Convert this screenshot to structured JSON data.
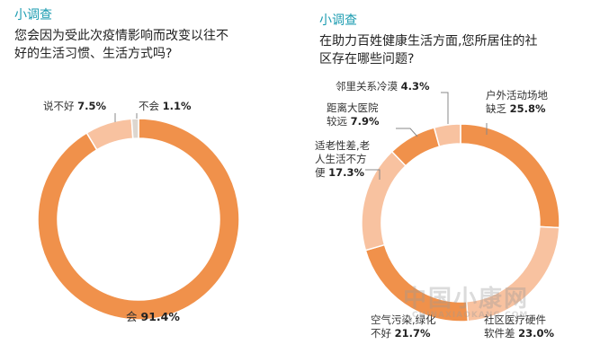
{
  "chart_data": [
    {
      "type": "pie",
      "kicker": "小调查",
      "question_lines": [
        "您会因为受此次疫情影响而改变以往不",
        "好的生活习惯、生活方式吗?"
      ],
      "slices": [
        {
          "label": "会",
          "value": 91.4,
          "value_text": "91.4%",
          "color": "#f0914b"
        },
        {
          "label": "说不好",
          "value": 7.5,
          "value_text": "7.5%",
          "color": "#f8c2a0"
        },
        {
          "label": "不会",
          "value": 1.1,
          "value_text": "1.1%",
          "color": "#ddd6cf"
        }
      ]
    },
    {
      "type": "pie",
      "kicker": "小调查",
      "question_lines": [
        "在助力百姓健康生活方面,您所居住的社",
        "区存在哪些问题?"
      ],
      "slices": [
        {
          "label_lines": [
            "户外活动场地",
            "缺乏"
          ],
          "value": 25.8,
          "value_text": "25.8%",
          "color": "#f0914b"
        },
        {
          "label_lines": [
            "社区医疗硬件",
            "软件差"
          ],
          "value": 23.0,
          "value_text": "23.0%",
          "color": "#f8c2a0"
        },
        {
          "label_lines": [
            "空气污染,绿化",
            "不好"
          ],
          "value": 21.7,
          "value_text": "21.7%",
          "color": "#f0914b"
        },
        {
          "label_lines": [
            "适老性差,老",
            "人生活不方",
            "便"
          ],
          "value": 17.3,
          "value_text": "17.3%",
          "color": "#f8c2a0"
        },
        {
          "label_lines": [
            "距离大医院",
            "较远"
          ],
          "value": 7.9,
          "value_text": "7.9%",
          "color": "#f0914b"
        },
        {
          "label_lines": [
            "邻里关系冷漠"
          ],
          "value": 4.3,
          "value_text": "4.3%",
          "color": "#f8c2a0"
        }
      ]
    }
  ],
  "watermark": {
    "main": "中国小康网",
    "sub": "CHINAXIAOKANG.COM"
  }
}
